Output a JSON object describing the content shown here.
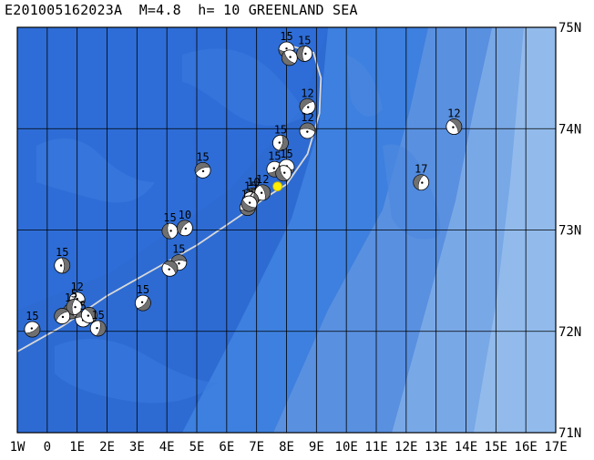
{
  "header": {
    "title": "E201005162023A  M=4.8  h= 10 GREENLAND SEA"
  },
  "colors": {
    "ocean_deep": "#2d6fd8",
    "ocean_mid": "#3f82e0",
    "ocean_shelf": "#6e9fe0",
    "ocean_shallow": "#8fb8ea",
    "grid": "#000000",
    "ridge": "#d8d8d8",
    "epicenter": "#ffee00"
  },
  "map": {
    "lon_range": [
      -1,
      17
    ],
    "lat_range": [
      71,
      75
    ],
    "lon_labels": [
      "1W",
      "0",
      "1E",
      "2E",
      "3E",
      "4E",
      "5E",
      "6E",
      "7E",
      "8E",
      "9E",
      "10E",
      "11E",
      "12E",
      "13E",
      "14E",
      "15E",
      "16E",
      "17E"
    ],
    "lat_labels": [
      "71N",
      "72N",
      "73N",
      "74N",
      "75N"
    ],
    "epicenter": {
      "lon": 7.7,
      "lat": 73.43
    },
    "ridge_line": [
      [
        -1.0,
        71.8
      ],
      [
        0.5,
        72.05
      ],
      [
        2.0,
        72.35
      ],
      [
        3.5,
        72.6
      ],
      [
        5.0,
        72.85
      ],
      [
        6.5,
        73.15
      ],
      [
        7.3,
        73.32
      ],
      [
        8.0,
        73.45
      ],
      [
        8.7,
        73.75
      ],
      [
        9.1,
        74.15
      ],
      [
        9.15,
        74.5
      ],
      [
        8.9,
        74.75
      ],
      [
        8.0,
        74.83
      ]
    ],
    "events": [
      {
        "lon": 8.0,
        "lat": 74.78,
        "label": "15"
      },
      {
        "lon": 8.1,
        "lat": 74.7,
        "label": ""
      },
      {
        "lon": 8.6,
        "lat": 74.74,
        "label": "15"
      },
      {
        "lon": 8.7,
        "lat": 74.22,
        "label": "12"
      },
      {
        "lon": 8.7,
        "lat": 73.98,
        "label": "12"
      },
      {
        "lon": 13.6,
        "lat": 74.02,
        "label": "12"
      },
      {
        "lon": 7.8,
        "lat": 73.86,
        "label": "15"
      },
      {
        "lon": 7.6,
        "lat": 73.6,
        "label": "15"
      },
      {
        "lon": 8.0,
        "lat": 73.62,
        "label": "15"
      },
      {
        "lon": 7.9,
        "lat": 73.56,
        "label": ""
      },
      {
        "lon": 12.5,
        "lat": 73.47,
        "label": "17"
      },
      {
        "lon": 5.2,
        "lat": 73.59,
        "label": "15"
      },
      {
        "lon": 6.9,
        "lat": 73.34,
        "label": "10"
      },
      {
        "lon": 7.2,
        "lat": 73.37,
        "label": "12"
      },
      {
        "lon": 6.8,
        "lat": 73.3,
        "label": "15"
      },
      {
        "lon": 6.7,
        "lat": 73.22,
        "label": "12"
      },
      {
        "lon": 6.75,
        "lat": 73.26,
        "label": ""
      },
      {
        "lon": 4.1,
        "lat": 72.99,
        "label": "15"
      },
      {
        "lon": 4.6,
        "lat": 73.02,
        "label": "10"
      },
      {
        "lon": 4.4,
        "lat": 72.68,
        "label": "15"
      },
      {
        "lon": 4.1,
        "lat": 72.62,
        "label": ""
      },
      {
        "lon": 0.5,
        "lat": 72.65,
        "label": "15"
      },
      {
        "lon": 3.2,
        "lat": 72.28,
        "label": "15"
      },
      {
        "lon": 1.0,
        "lat": 72.31,
        "label": "12"
      },
      {
        "lon": 0.8,
        "lat": 72.2,
        "label": "12"
      },
      {
        "lon": 0.9,
        "lat": 72.24,
        "label": "5"
      },
      {
        "lon": 0.5,
        "lat": 72.15,
        "label": ""
      },
      {
        "lon": 1.2,
        "lat": 72.12,
        "label": "5"
      },
      {
        "lon": 1.4,
        "lat": 72.16,
        "label": ""
      },
      {
        "lon": 1.7,
        "lat": 72.03,
        "label": "15"
      },
      {
        "lon": -0.5,
        "lat": 72.02,
        "label": "15"
      }
    ]
  }
}
